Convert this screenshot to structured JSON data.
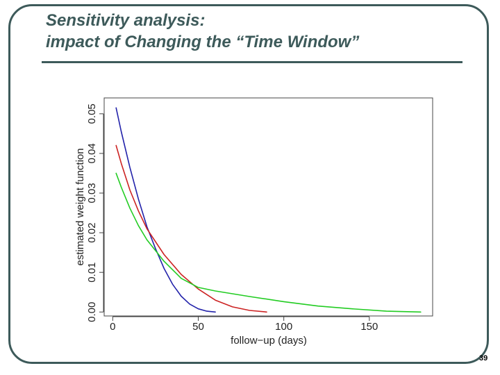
{
  "slide": {
    "title_line1": "Sensitivity analysis:",
    "title_line2": "impact of Changing the “Time Window”",
    "page_number": "39"
  },
  "colors": {
    "frame": "#3d5a5a",
    "blue": "#2222aa",
    "red": "#cc2222",
    "green": "#22cc22"
  },
  "chart_data": {
    "type": "line",
    "xlabel": "follow−up (days)",
    "ylabel": "estimated weight function",
    "xlim": [
      -5,
      187
    ],
    "ylim": [
      -0.001,
      0.054
    ],
    "xticks": [
      0,
      50,
      100,
      150
    ],
    "yticks": [
      0.0,
      0.01,
      0.02,
      0.03,
      0.04,
      0.05
    ],
    "ytick_labels": [
      "0.00",
      "0.01",
      "0.02",
      "0.03",
      "0.04",
      "0.05"
    ],
    "grid": false,
    "series": [
      {
        "color": "#2222aa",
        "x": [
          2,
          5,
          10,
          15,
          20,
          25,
          30,
          35,
          40,
          45,
          50,
          55,
          60
        ],
        "y": [
          0.0515,
          0.0455,
          0.0365,
          0.0285,
          0.0215,
          0.016,
          0.011,
          0.007,
          0.004,
          0.002,
          0.0008,
          0.0002,
          0.0
        ]
      },
      {
        "color": "#cc2222",
        "x": [
          2,
          5,
          10,
          15,
          20,
          30,
          40,
          50,
          60,
          70,
          80,
          90
        ],
        "y": [
          0.042,
          0.0375,
          0.0308,
          0.0255,
          0.021,
          0.0145,
          0.0095,
          0.0058,
          0.003,
          0.0013,
          0.0004,
          0.0
        ]
      },
      {
        "color": "#22cc22",
        "x": [
          2,
          5,
          10,
          15,
          20,
          30,
          40,
          50,
          60,
          80,
          100,
          120,
          140,
          160,
          180
        ],
        "y": [
          0.035,
          0.0315,
          0.0262,
          0.0218,
          0.0182,
          0.0128,
          0.0085,
          0.0062,
          0.0053,
          0.0039,
          0.0026,
          0.0015,
          0.0008,
          0.0002,
          0.0
        ]
      }
    ]
  }
}
